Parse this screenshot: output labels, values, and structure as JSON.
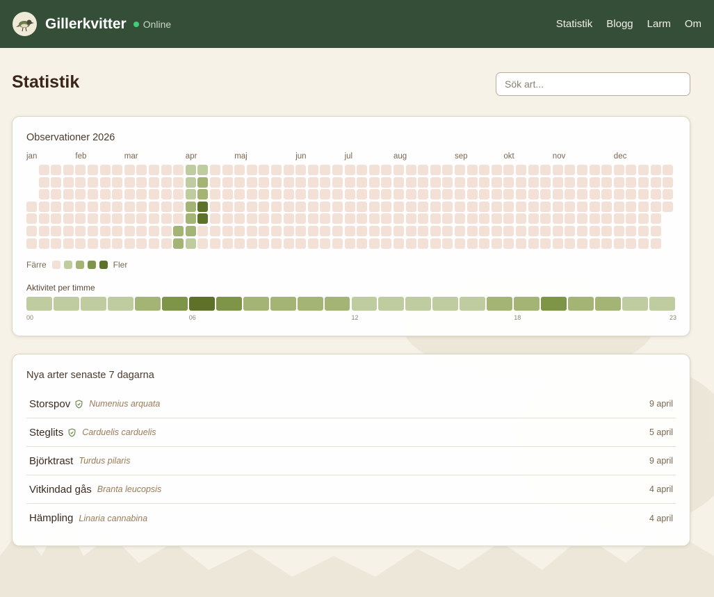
{
  "app": {
    "name": "Gillerkvitter",
    "status": "Online"
  },
  "nav": [
    "Statistik",
    "Blogg",
    "Larm",
    "Om"
  ],
  "page": {
    "title": "Statistik"
  },
  "search": {
    "placeholder": "Sök art..."
  },
  "observations": {
    "title": "Observationer 2026",
    "months": [
      "jan",
      "feb",
      "mar",
      "apr",
      "maj",
      "jun",
      "jul",
      "aug",
      "sep",
      "okt",
      "nov",
      "dec"
    ],
    "legend": {
      "less": "Färre",
      "more": "Fler"
    },
    "level_colors": [
      "#f3e0d6",
      "#bfcc9f",
      "#a3b474",
      "#7e9446",
      "#5e7128"
    ],
    "active_days": [
      {
        "date": "2026-03-28",
        "level": 2
      },
      {
        "date": "2026-03-29",
        "level": 2
      },
      {
        "date": "2026-03-30",
        "level": 1
      },
      {
        "date": "2026-03-31",
        "level": 1
      },
      {
        "date": "2026-04-01",
        "level": 1
      },
      {
        "date": "2026-04-02",
        "level": 2
      },
      {
        "date": "2026-04-03",
        "level": 2
      },
      {
        "date": "2026-04-04",
        "level": 2
      },
      {
        "date": "2026-04-05",
        "level": 1
      },
      {
        "date": "2026-04-06",
        "level": 1
      },
      {
        "date": "2026-04-07",
        "level": 2
      },
      {
        "date": "2026-04-08",
        "level": 2
      },
      {
        "date": "2026-04-09",
        "level": 4
      },
      {
        "date": "2026-04-10",
        "level": 4
      }
    ]
  },
  "hourly": {
    "title": "Aktivitet per timme",
    "tick_labels": [
      "00",
      "06",
      "12",
      "18",
      "23"
    ],
    "levels": [
      1,
      1,
      1,
      1,
      2,
      3,
      4,
      3,
      2,
      2,
      2,
      2,
      1,
      1,
      1,
      1,
      1,
      2,
      2,
      3,
      2,
      2,
      1,
      1
    ]
  },
  "new_species": {
    "title": "Nya arter senaste 7 dagarna",
    "items": [
      {
        "name": "Storspov",
        "latin": "Numenius arquata",
        "date": "9 april",
        "protected": true
      },
      {
        "name": "Steglits",
        "latin": "Carduelis carduelis",
        "date": "5 april",
        "protected": true
      },
      {
        "name": "Björktrast",
        "latin": "Turdus pilaris",
        "date": "9 april",
        "protected": false
      },
      {
        "name": "Vitkindad gås",
        "latin": "Branta leucopsis",
        "date": "4 april",
        "protected": false
      },
      {
        "name": "Hämpling",
        "latin": "Linaria cannabina",
        "date": "4 april",
        "protected": false
      }
    ]
  }
}
